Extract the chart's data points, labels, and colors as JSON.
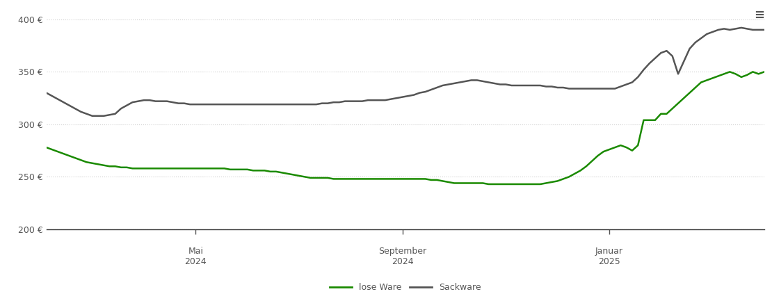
{
  "background_color": "#ffffff",
  "ylim": [
    200,
    410
  ],
  "yticks": [
    200,
    250,
    300,
    350,
    400
  ],
  "ytick_labels": [
    "200 €",
    "250 €",
    "300 €",
    "350 €",
    "400 €"
  ],
  "grid_color": "#d0d0d0",
  "grid_linestyle": "dotted",
  "legend_labels": [
    "lose Ware",
    "Sackware"
  ],
  "legend_colors": [
    "#1a8a00",
    "#555555"
  ],
  "line_width": 1.8,
  "x_tick_labels_line1": [
    "Mai",
    "September",
    "Januar"
  ],
  "x_tick_labels_line2": [
    "2024",
    "2024",
    "2025"
  ],
  "lose_ware": [
    278,
    276,
    274,
    272,
    270,
    268,
    266,
    264,
    263,
    262,
    261,
    260,
    260,
    259,
    259,
    258,
    258,
    258,
    258,
    258,
    258,
    258,
    258,
    258,
    258,
    258,
    258,
    258,
    258,
    258,
    258,
    258,
    257,
    257,
    257,
    257,
    256,
    256,
    256,
    255,
    255,
    254,
    253,
    252,
    251,
    250,
    249,
    249,
    249,
    249,
    248,
    248,
    248,
    248,
    248,
    248,
    248,
    248,
    248,
    248,
    248,
    248,
    248,
    248,
    248,
    248,
    248,
    247,
    247,
    246,
    245,
    244,
    244,
    244,
    244,
    244,
    244,
    243,
    243,
    243,
    243,
    243,
    243,
    243,
    243,
    243,
    243,
    244,
    245,
    246,
    248,
    250,
    253,
    256,
    260,
    265,
    270,
    274,
    276,
    278,
    280,
    278,
    275,
    280,
    304,
    304,
    304,
    310,
    310,
    315,
    320,
    325,
    330,
    335,
    340,
    342,
    344,
    346,
    348,
    350,
    348,
    345,
    347,
    350,
    348,
    350
  ],
  "sackware": [
    330,
    327,
    324,
    321,
    318,
    315,
    312,
    310,
    308,
    308,
    308,
    309,
    310,
    315,
    318,
    321,
    322,
    323,
    323,
    322,
    322,
    322,
    321,
    320,
    320,
    319,
    319,
    319,
    319,
    319,
    319,
    319,
    319,
    319,
    319,
    319,
    319,
    319,
    319,
    319,
    319,
    319,
    319,
    319,
    319,
    319,
    319,
    319,
    320,
    320,
    321,
    321,
    322,
    322,
    322,
    322,
    323,
    323,
    323,
    323,
    324,
    325,
    326,
    327,
    328,
    330,
    331,
    333,
    335,
    337,
    338,
    339,
    340,
    341,
    342,
    342,
    341,
    340,
    339,
    338,
    338,
    337,
    337,
    337,
    337,
    337,
    337,
    336,
    336,
    335,
    335,
    334,
    334,
    334,
    334,
    334,
    334,
    334,
    334,
    334,
    336,
    338,
    340,
    345,
    352,
    358,
    363,
    368,
    370,
    365,
    348,
    360,
    372,
    378,
    382,
    386,
    388,
    390,
    391,
    390,
    391,
    392,
    391,
    390,
    390,
    390
  ]
}
